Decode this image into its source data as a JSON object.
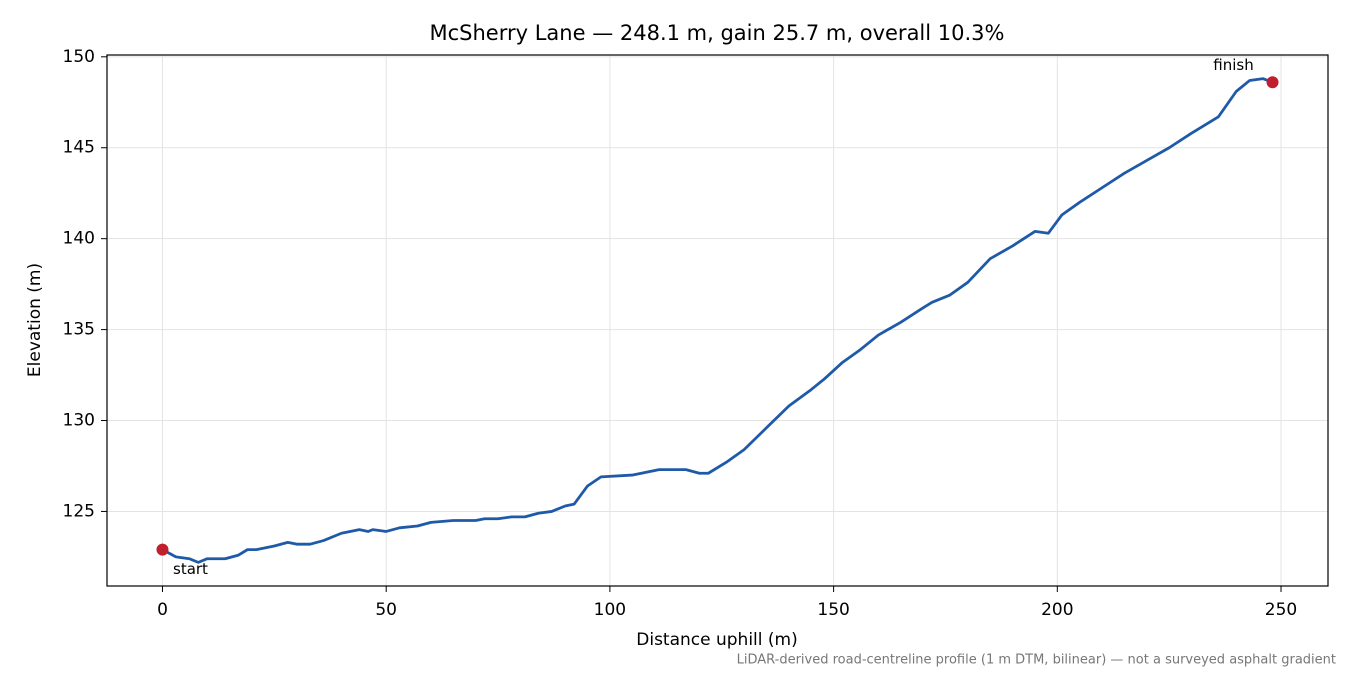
{
  "chart_data": {
    "type": "line",
    "title": "McSherry Lane — 248.1 m, gain 25.7 m, overall 10.3%",
    "xlabel": "Distance uphill (m)",
    "ylabel": "Elevation (m)",
    "footnote": "LiDAR-derived road-centreline profile (1 m DTM, bilinear) — not a surveyed asphalt gradient",
    "x": [
      0,
      3,
      6,
      8,
      10,
      14,
      17,
      19,
      21,
      25,
      28,
      30,
      33,
      36,
      40,
      44,
      46,
      47,
      50,
      53,
      57,
      60,
      65,
      70,
      72,
      75,
      78,
      81,
      84,
      87,
      90,
      92,
      95,
      98,
      105,
      111,
      117,
      120,
      122,
      126,
      130,
      135,
      140,
      145,
      148,
      152,
      156,
      160,
      165,
      170,
      172,
      176,
      180,
      185,
      190,
      195,
      198,
      201,
      205,
      210,
      215,
      220,
      225,
      230,
      236,
      240,
      243,
      246,
      248.1
    ],
    "series": [
      {
        "name": "Elevation",
        "color": "#1f5aa8",
        "values": [
          122.9,
          122.5,
          122.4,
          122.2,
          122.4,
          122.4,
          122.6,
          122.9,
          122.9,
          123.1,
          123.3,
          123.2,
          123.2,
          123.4,
          123.8,
          124.0,
          123.9,
          124.0,
          123.9,
          124.1,
          124.2,
          124.4,
          124.5,
          124.5,
          124.6,
          124.6,
          124.7,
          124.7,
          124.9,
          125.0,
          125.3,
          125.4,
          126.4,
          126.9,
          127.0,
          127.3,
          127.3,
          127.1,
          127.1,
          127.7,
          128.4,
          129.6,
          130.8,
          131.7,
          132.3,
          133.2,
          133.9,
          134.7,
          135.4,
          136.2,
          136.5,
          136.9,
          137.6,
          138.9,
          139.6,
          140.4,
          140.3,
          141.3,
          142.0,
          142.8,
          143.6,
          144.3,
          145.0,
          145.8,
          146.7,
          148.1,
          148.7,
          148.8,
          148.6
        ]
      }
    ],
    "annotations": [
      {
        "text": "start",
        "x": 0,
        "y": 122.9,
        "color": "#c0202e"
      },
      {
        "text": "finish",
        "x": 248.1,
        "y": 148.6,
        "color": "#c0202e"
      }
    ],
    "xlim": [
      -12.4,
      260.5
    ],
    "ylim": [
      120.9,
      150.1
    ],
    "xticks": [
      0,
      50,
      100,
      150,
      200,
      250
    ],
    "yticks": [
      125,
      130,
      135,
      140,
      145,
      150
    ],
    "grid": true
  }
}
